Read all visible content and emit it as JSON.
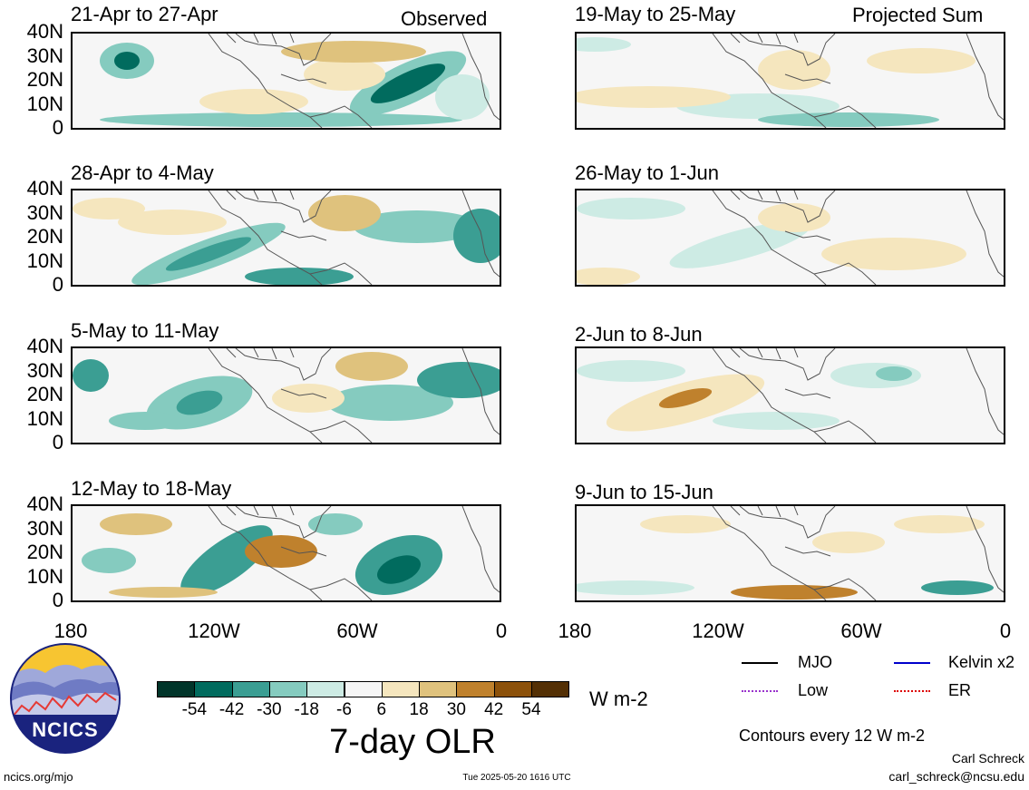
{
  "tags": {
    "observed": "Observed",
    "projected": "Projected Sum"
  },
  "panels_left": [
    {
      "title": "21-Apr to 27-Apr"
    },
    {
      "title": "28-Apr to 4-May"
    },
    {
      "title": "5-May to 11-May"
    },
    {
      "title": "12-May to 18-May"
    }
  ],
  "panels_right": [
    {
      "title": "19-May to 25-May"
    },
    {
      "title": "26-May to 1-Jun"
    },
    {
      "title": "2-Jun to 8-Jun"
    },
    {
      "title": "9-Jun to 15-Jun"
    }
  ],
  "y_ticks": [
    "40N",
    "30N",
    "20N",
    "10N",
    "0"
  ],
  "x_ticks": [
    "180",
    "120W",
    "60W",
    "0"
  ],
  "colorbar": {
    "colors": [
      "#01352a",
      "#016b5e",
      "#3b9e93",
      "#85cbbf",
      "#cdebe4",
      "#f6f6f6",
      "#f5e6be",
      "#dfc27d",
      "#bf812d",
      "#8c510a",
      "#543005"
    ],
    "labels": [
      "-54",
      "-42",
      "-30",
      "-18",
      "-6",
      "6",
      "18",
      "30",
      "42",
      "54"
    ],
    "unit": "W m-2",
    "title": "7-day OLR"
  },
  "legend": {
    "items": [
      {
        "label": "MJO",
        "color": "#000000"
      },
      {
        "label": "Kelvin x2",
        "color": "#0000cc"
      },
      {
        "label": "Low",
        "color": "#9933cc"
      },
      {
        "label": "ER",
        "color": "#dd0000"
      }
    ],
    "contours": "Contours every 12 W m-2"
  },
  "logo": {
    "text": "NCICS"
  },
  "footer": {
    "url": "ncics.org/mjo",
    "timestamp": "Tue 2025-05-20 1616 UTC",
    "author": "Carl Schreck",
    "email": "carl_schreck@ncsu.edu"
  }
}
